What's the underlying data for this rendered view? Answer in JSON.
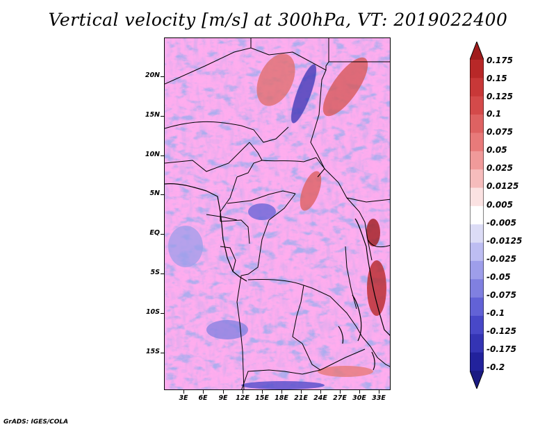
{
  "title": "Vertical velocity [m/s] at 300hPa, VT: 2019022400",
  "credit": "GrADS: IGES/COLA",
  "map": {
    "lat_labels": [
      "20N",
      "15N",
      "10N",
      "5N",
      "EQ",
      "5S",
      "10S",
      "15S"
    ],
    "lon_labels": [
      "3E",
      "6E",
      "9E",
      "12E",
      "15E",
      "18E",
      "21E",
      "24E",
      "27E",
      "30E",
      "33E"
    ]
  },
  "colorbar": {
    "labels": [
      "0.175",
      "0.15",
      "0.125",
      "0.1",
      "0.075",
      "0.05",
      "0.025",
      "0.0125",
      "0.005",
      "-0.005",
      "-0.0125",
      "-0.025",
      "-0.05",
      "-0.075",
      "-0.1",
      "-0.125",
      "-0.175",
      "-0.2"
    ],
    "colors": [
      "#a01c1c",
      "#b82828",
      "#c83838",
      "#d44a4a",
      "#de6262",
      "#e87a7a",
      "#f09a9a",
      "#f6bcbc",
      "#fbe2e2",
      "#ffffff",
      "#dcdcf6",
      "#bdbdf2",
      "#9e9eea",
      "#8080e0",
      "#6262d6",
      "#4848c8",
      "#3434b4",
      "#22229c",
      "#1a1a82"
    ]
  }
}
